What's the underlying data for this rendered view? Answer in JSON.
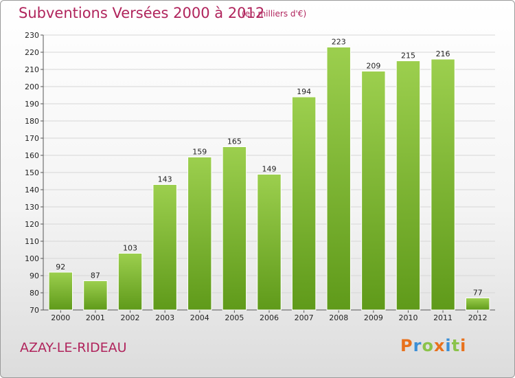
{
  "title": "Subventions Versées 2000 à 2012",
  "unit_note": "(en milliers d'€)",
  "commune": "AZAY-LE-RIDEAU",
  "logo": {
    "text": "Proxiti",
    "colors": [
      "#e8711c",
      "#3b8fd6",
      "#8bc34a",
      "#e8711c",
      "#3b8fd6",
      "#8bc34a",
      "#e8711c"
    ]
  },
  "colors": {
    "title": "#b0245c",
    "bar_light": "#9ccf4e",
    "bar_dark": "#5f9a1a",
    "grid": "#d6d6d6"
  },
  "chart_data": {
    "type": "bar",
    "categories": [
      "2000",
      "2001",
      "2002",
      "2003",
      "2004",
      "2005",
      "2006",
      "2007",
      "2008",
      "2009",
      "2010",
      "2011",
      "2012"
    ],
    "values": [
      92,
      87,
      103,
      143,
      159,
      165,
      149,
      194,
      223,
      209,
      215,
      216,
      77
    ],
    "ylim": [
      70,
      230
    ],
    "yticks": [
      70,
      80,
      90,
      100,
      110,
      120,
      130,
      140,
      150,
      160,
      170,
      180,
      190,
      200,
      210,
      220,
      230
    ],
    "grid": true,
    "data_labels": true
  }
}
